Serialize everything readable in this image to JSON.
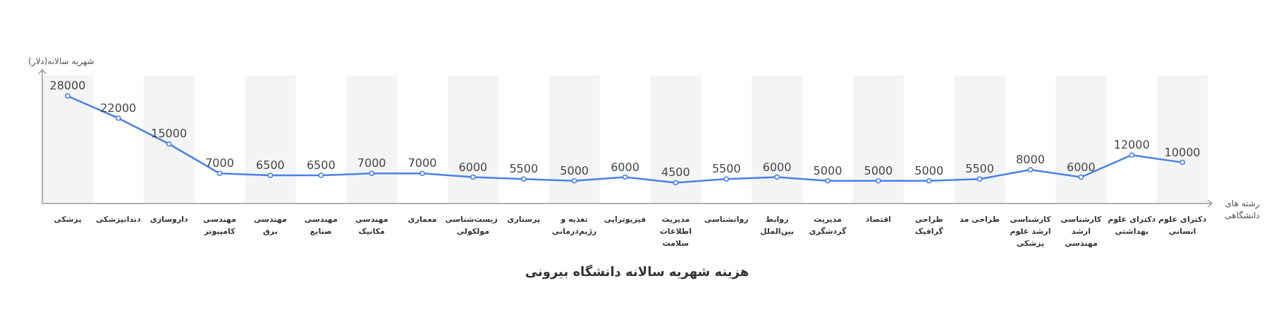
{
  "chart_data": {
    "type": "line",
    "title": "هزینه شهریه سالانه دانشگاه بیرونی",
    "xlabel": "رشته های دانشگاهی",
    "ylabel": "شهریه سالانه(دلار)",
    "categories": [
      "پزشکی",
      "دندانپزشکی",
      "داروسازی",
      "مهندسی کامپیوتر",
      "مهندسی برق",
      "مهندسی صنایع",
      "مهندسی مکانیک",
      "معماری",
      "زیست‌شناسی مولکولی",
      "پرستاری",
      "تغذیه و رژیم‌درمانی",
      "فیزیوتراپی",
      "مدیریت اطلاعات سلامت",
      "روانشناسی",
      "روابط بین‌الملل",
      "مدیریت گردشگری",
      "اقتصاد",
      "طراحی گرافیک",
      "طراحی مد",
      "کارشناسی ارشد علوم پزشکی",
      "کارشناسی ارشد مهندسی",
      "دکترای علوم بهداشتی",
      "دکترای علوم انسانی"
    ],
    "series": [
      {
        "color": "#4a80e8",
        "values": [
          28000,
          22000,
          15000,
          7000,
          6500,
          6500,
          7000,
          7000,
          6000,
          5500,
          5000,
          6000,
          4500,
          5500,
          6000,
          5000,
          5000,
          5000,
          5500,
          8000,
          6000,
          12000,
          10000
        ]
      }
    ],
    "data_labels": true,
    "marker": "circle",
    "line_style": "solid"
  }
}
